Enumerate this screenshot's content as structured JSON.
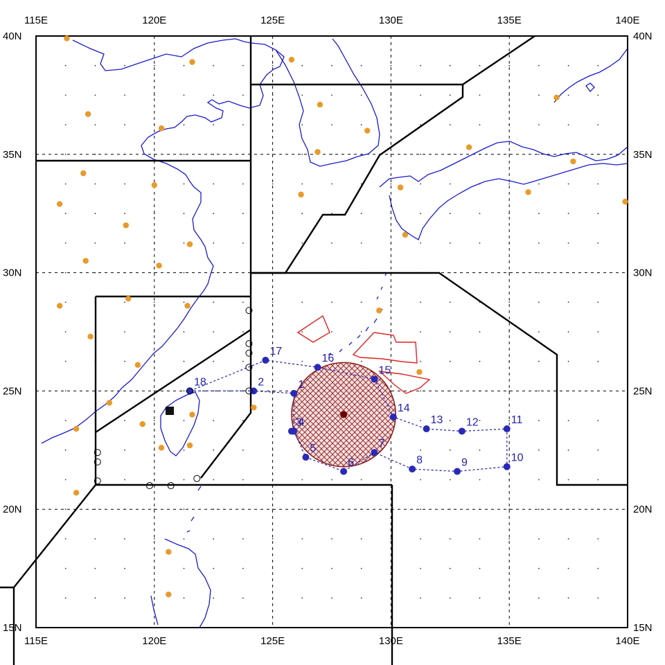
{
  "map": {
    "lon_labels": [
      "115E",
      "120E",
      "125E",
      "130E",
      "135E",
      "140E"
    ],
    "lat_labels": [
      "40N",
      "35N",
      "30N",
      "25N",
      "20N",
      "15N"
    ],
    "lon_range": [
      115,
      140
    ],
    "lat_range": [
      15,
      40
    ],
    "grid": "dashed every 5 degrees with dotted points",
    "colors": {
      "coast": "#1a1acc",
      "zone_border": "#000000",
      "station": "#e89a2a",
      "track": "#2a2ab8",
      "storm_hatch": "#8b1a1a",
      "convection": "#dd2222"
    }
  },
  "track_points": [
    {
      "label": "1",
      "lon": 125.9,
      "lat": 24.9
    },
    {
      "label": "2",
      "lon": 124.2,
      "lat": 25.0
    },
    {
      "label": "3",
      "lon": 125.8,
      "lat": 23.3
    },
    {
      "label": "4",
      "lon": 125.9,
      "lat": 23.3
    },
    {
      "label": "5",
      "lon": 126.4,
      "lat": 22.2
    },
    {
      "label": "6",
      "lon": 128.0,
      "lat": 21.6
    },
    {
      "label": "7",
      "lon": 129.3,
      "lat": 22.4
    },
    {
      "label": "8",
      "lon": 130.9,
      "lat": 21.7
    },
    {
      "label": "9",
      "lon": 132.8,
      "lat": 21.6
    },
    {
      "label": "10",
      "lon": 134.9,
      "lat": 21.8
    },
    {
      "label": "11",
      "lon": 134.9,
      "lat": 23.4
    },
    {
      "label": "12",
      "lon": 133.0,
      "lat": 23.3
    },
    {
      "label": "13",
      "lon": 131.5,
      "lat": 23.4
    },
    {
      "label": "14",
      "lon": 130.1,
      "lat": 23.9
    },
    {
      "label": "15",
      "lon": 129.3,
      "lat": 25.5
    },
    {
      "label": "16",
      "lon": 126.9,
      "lat": 26.0
    },
    {
      "label": "17",
      "lon": 124.7,
      "lat": 26.3
    },
    {
      "label": "18",
      "lon": 121.5,
      "lat": 25.0
    }
  ],
  "storm": {
    "center_lon": 128.0,
    "center_lat": 24.0,
    "radius_deg": 2.2
  }
}
